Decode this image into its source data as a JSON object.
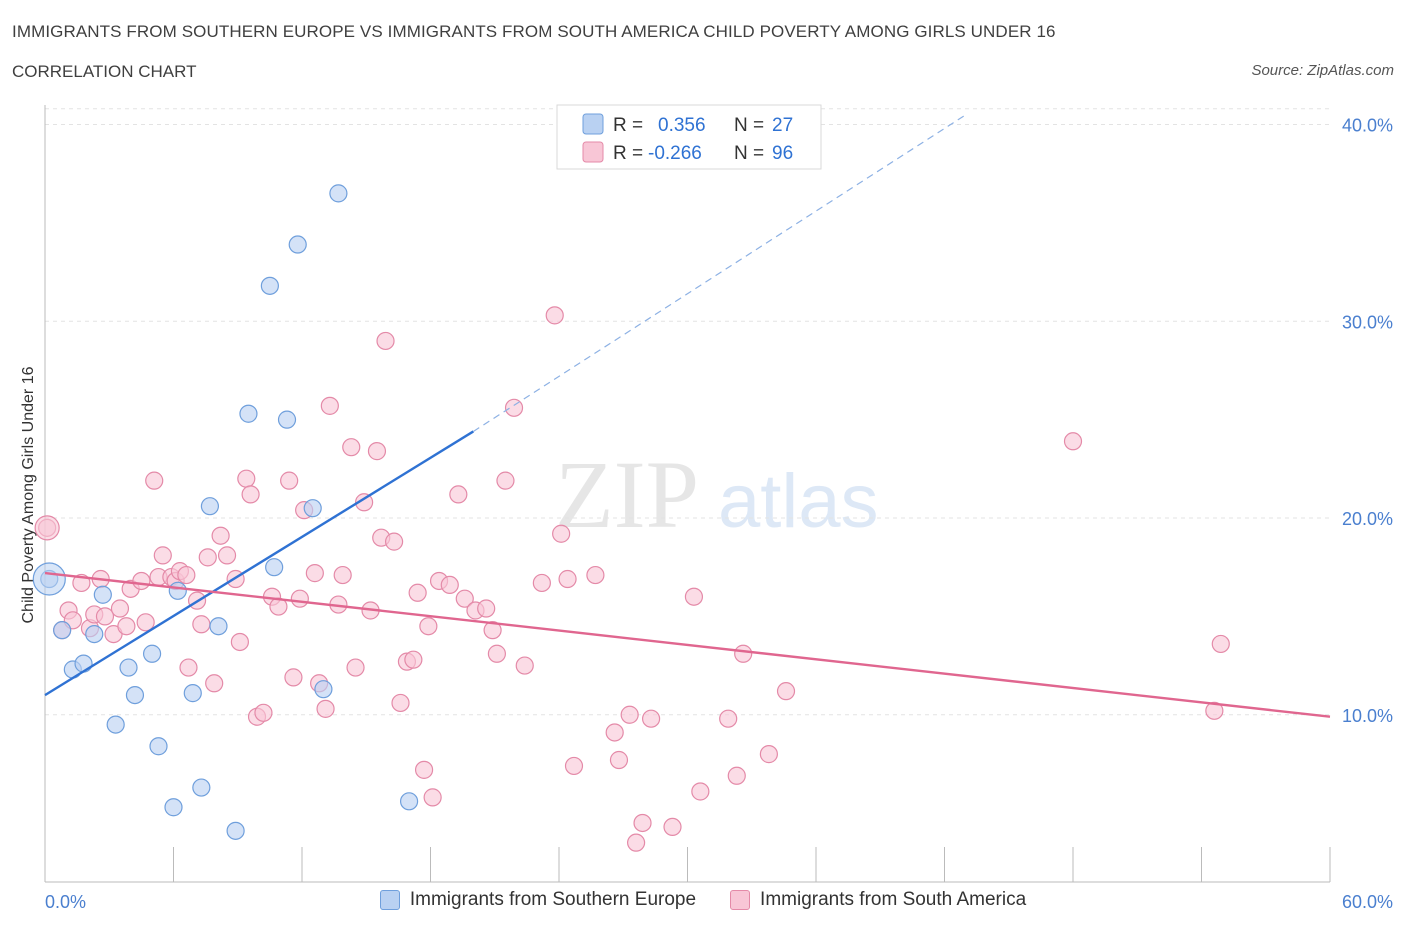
{
  "title": "IMMIGRANTS FROM SOUTHERN EUROPE VS IMMIGRANTS FROM SOUTH AMERICA CHILD POVERTY AMONG GIRLS UNDER 16",
  "subtitle": "CORRELATION CHART",
  "source": "Source: ZipAtlas.com",
  "watermark": {
    "zip": "ZIP",
    "atlas": "atlas"
  },
  "colors": {
    "blue_fill": "#b9d1f2",
    "blue_stroke": "#6f9fdc",
    "blue_line": "#2f72d3",
    "pink_fill": "#f8c6d6",
    "pink_stroke": "#e48aa8",
    "pink_line": "#e0668f",
    "tick_text": "#4a7fcf",
    "grid": "#e3e3e3"
  },
  "legend": {
    "rows": [
      {
        "r_label": "R =",
        "r_value": "0.356",
        "n_label": "N =",
        "n_value": "27"
      },
      {
        "r_label": "R =",
        "r_value": "-0.266",
        "n_label": "N =",
        "n_value": "96"
      }
    ]
  },
  "chart_data": {
    "type": "scatter",
    "xlabel": "",
    "ylabel": "Child Poverty Among Girls Under 16",
    "xlim": [
      0,
      60
    ],
    "ylim": [
      1.5,
      41.5
    ],
    "x_ticks": [
      {
        "value": 0,
        "label": "0.0%"
      },
      {
        "value": 60,
        "label": "60.0%"
      }
    ],
    "y_ticks": [
      {
        "value": 10,
        "label": "10.0%"
      },
      {
        "value": 20,
        "label": "20.0%"
      },
      {
        "value": 30,
        "label": "30.0%"
      },
      {
        "value": 40,
        "label": "40.0%"
      }
    ],
    "grid": "horizontal dashed",
    "legend_position": "top-center",
    "series": [
      {
        "name": "Immigrants from Southern Europe",
        "color": "blue",
        "points": [
          [
            0.2,
            16.9
          ],
          [
            0.8,
            14.3
          ],
          [
            1.3,
            12.3
          ],
          [
            1.8,
            12.6
          ],
          [
            2.3,
            14.1
          ],
          [
            2.7,
            16.1
          ],
          [
            3.3,
            9.5
          ],
          [
            3.9,
            12.4
          ],
          [
            4.2,
            11.0
          ],
          [
            5.0,
            13.1
          ],
          [
            5.3,
            8.4
          ],
          [
            6.0,
            5.3
          ],
          [
            6.2,
            16.3
          ],
          [
            6.9,
            11.1
          ],
          [
            7.3,
            6.3
          ],
          [
            7.7,
            20.6
          ],
          [
            8.1,
            14.5
          ],
          [
            8.9,
            4.1
          ],
          [
            9.5,
            25.3
          ],
          [
            10.5,
            31.8
          ],
          [
            10.7,
            17.5
          ],
          [
            11.3,
            25.0
          ],
          [
            11.8,
            33.9
          ],
          [
            12.5,
            20.5
          ],
          [
            13.0,
            11.3
          ],
          [
            13.7,
            36.5
          ],
          [
            17.0,
            5.6
          ]
        ]
      },
      {
        "name": "Immigrants from South America",
        "color": "pink",
        "points": [
          [
            0.1,
            19.5
          ],
          [
            0.8,
            14.3
          ],
          [
            1.1,
            15.3
          ],
          [
            1.3,
            14.8
          ],
          [
            1.7,
            16.7
          ],
          [
            2.1,
            14.4
          ],
          [
            2.3,
            15.1
          ],
          [
            2.6,
            16.9
          ],
          [
            2.8,
            15.0
          ],
          [
            3.2,
            14.1
          ],
          [
            3.5,
            15.4
          ],
          [
            3.8,
            14.5
          ],
          [
            4.0,
            16.4
          ],
          [
            4.5,
            16.8
          ],
          [
            4.7,
            14.7
          ],
          [
            5.1,
            21.9
          ],
          [
            5.3,
            17.0
          ],
          [
            5.5,
            18.1
          ],
          [
            5.9,
            17.0
          ],
          [
            6.1,
            16.8
          ],
          [
            6.3,
            17.3
          ],
          [
            6.6,
            17.1
          ],
          [
            6.7,
            12.4
          ],
          [
            7.1,
            15.8
          ],
          [
            7.3,
            14.6
          ],
          [
            7.6,
            18.0
          ],
          [
            7.9,
            11.6
          ],
          [
            8.2,
            19.1
          ],
          [
            8.5,
            18.1
          ],
          [
            8.9,
            16.9
          ],
          [
            9.1,
            13.7
          ],
          [
            9.4,
            22.0
          ],
          [
            9.6,
            21.2
          ],
          [
            9.9,
            9.9
          ],
          [
            10.2,
            10.1
          ],
          [
            10.6,
            16.0
          ],
          [
            10.9,
            15.5
          ],
          [
            11.4,
            21.9
          ],
          [
            11.6,
            11.9
          ],
          [
            11.9,
            15.9
          ],
          [
            12.1,
            20.4
          ],
          [
            12.6,
            17.2
          ],
          [
            12.8,
            11.6
          ],
          [
            13.1,
            10.3
          ],
          [
            13.3,
            25.7
          ],
          [
            13.7,
            15.6
          ],
          [
            13.9,
            17.1
          ],
          [
            14.3,
            23.6
          ],
          [
            14.5,
            12.4
          ],
          [
            14.9,
            20.8
          ],
          [
            15.2,
            15.3
          ],
          [
            15.5,
            23.4
          ],
          [
            15.7,
            19.0
          ],
          [
            15.9,
            29.0
          ],
          [
            16.3,
            18.8
          ],
          [
            16.6,
            10.6
          ],
          [
            16.9,
            12.7
          ],
          [
            17.2,
            12.8
          ],
          [
            17.4,
            16.2
          ],
          [
            17.7,
            7.2
          ],
          [
            17.9,
            14.5
          ],
          [
            18.1,
            5.8
          ],
          [
            18.4,
            16.8
          ],
          [
            18.9,
            16.6
          ],
          [
            19.3,
            21.2
          ],
          [
            19.6,
            15.9
          ],
          [
            20.1,
            15.3
          ],
          [
            20.6,
            15.4
          ],
          [
            20.9,
            14.3
          ],
          [
            21.1,
            13.1
          ],
          [
            21.5,
            21.9
          ],
          [
            21.9,
            25.6
          ],
          [
            22.4,
            12.5
          ],
          [
            23.2,
            16.7
          ],
          [
            23.8,
            30.3
          ],
          [
            24.1,
            19.2
          ],
          [
            24.4,
            16.9
          ],
          [
            24.7,
            7.4
          ],
          [
            25.7,
            17.1
          ],
          [
            26.6,
            9.1
          ],
          [
            26.8,
            7.7
          ],
          [
            27.3,
            10.0
          ],
          [
            27.6,
            3.5
          ],
          [
            27.9,
            4.5
          ],
          [
            28.3,
            9.8
          ],
          [
            29.3,
            4.3
          ],
          [
            30.3,
            16.0
          ],
          [
            30.6,
            6.1
          ],
          [
            31.9,
            9.8
          ],
          [
            32.3,
            6.9
          ],
          [
            32.6,
            13.1
          ],
          [
            33.8,
            8.0
          ],
          [
            34.6,
            11.2
          ],
          [
            48.0,
            23.9
          ],
          [
            54.6,
            10.2
          ],
          [
            54.9,
            13.6
          ]
        ]
      }
    ],
    "trend_lines": [
      {
        "series": "Immigrants from Southern Europe",
        "x": [
          0,
          20
        ],
        "y": [
          11.0,
          24.4
        ],
        "dashed_extension_x": [
          20,
          43
        ],
        "dashed_extension_y": [
          24.4,
          40.5
        ]
      },
      {
        "series": "Immigrants from South America",
        "x": [
          0,
          60
        ],
        "y": [
          17.2,
          9.9
        ]
      }
    ]
  }
}
